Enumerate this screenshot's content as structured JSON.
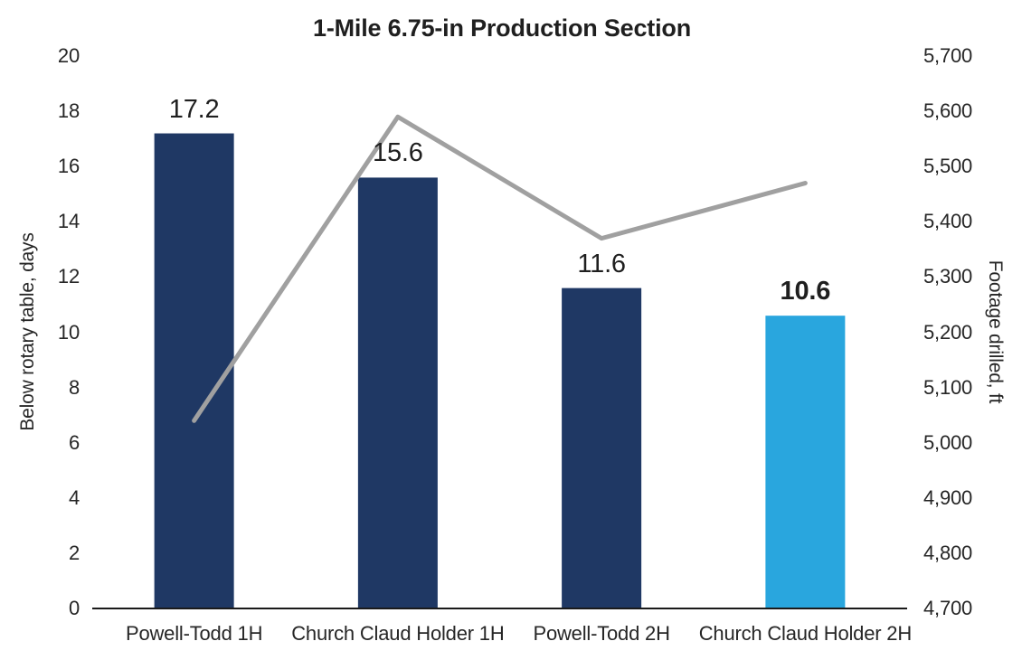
{
  "chart_data": {
    "type": "bar+line",
    "title": "1-Mile 6.75-in Production Section",
    "categories": [
      "Powell-Todd 1H",
      "Church Claud Holder 1H",
      "Powell-Todd 2H",
      "Church Claud Holder 2H"
    ],
    "series": [
      {
        "name": "Below rotary table, days",
        "type": "bar",
        "axis": "left",
        "values": [
          17.2,
          15.6,
          11.6,
          10.6
        ],
        "labels": [
          "17.2",
          "15.6",
          "11.6",
          "10.6"
        ],
        "colors": [
          "#1F3864",
          "#1F3864",
          "#1F3864",
          "#29A6DE"
        ],
        "label_bold": [
          false,
          false,
          false,
          true
        ]
      },
      {
        "name": "Footage drilled, ft",
        "type": "line",
        "axis": "right",
        "values": [
          5040,
          5590,
          5370,
          5470
        ],
        "color": "#A0A0A0",
        "stroke_width": 5
      }
    ],
    "left_axis": {
      "label": "Below rotary table, days",
      "min": 0,
      "max": 20,
      "step": 2,
      "ticks": [
        "0",
        "2",
        "4",
        "6",
        "8",
        "10",
        "12",
        "14",
        "16",
        "18",
        "20"
      ]
    },
    "right_axis": {
      "label": "Footage drilled, ft",
      "min": 4700,
      "max": 5700,
      "step": 100,
      "ticks": [
        "4,700",
        "4,800",
        "4,900",
        "5,000",
        "5,100",
        "5,200",
        "5,300",
        "5,400",
        "5,500",
        "5,600",
        "5,700"
      ]
    },
    "legend": "none",
    "grid": "off",
    "colors": {
      "bar_default": "#1F3864",
      "bar_highlight": "#29A6DE",
      "line": "#A0A0A0",
      "axis_line": "#1A1A1A",
      "text": "#262626",
      "background": "#FFFFFF"
    }
  }
}
